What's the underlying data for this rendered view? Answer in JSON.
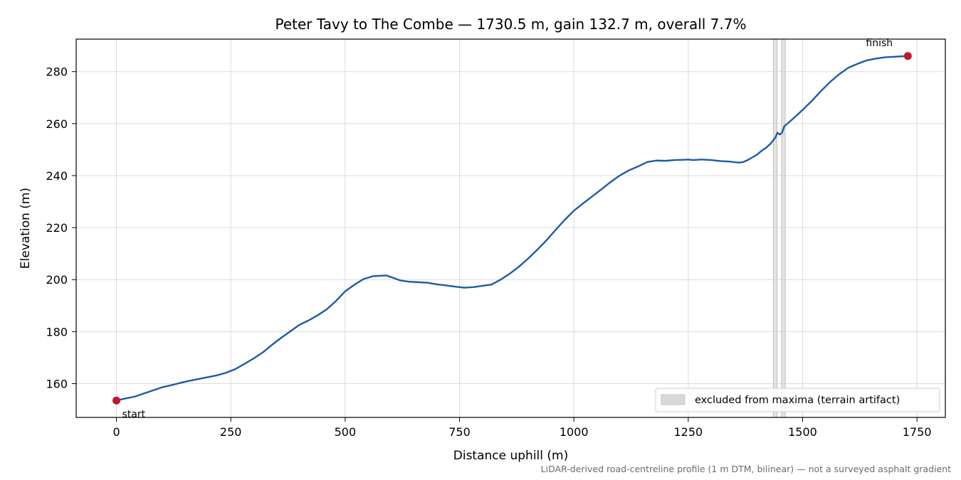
{
  "chart_data": {
    "type": "line",
    "title": "Peter Tavy to The Combe — 1730.5 m, gain 132.7 m, overall 7.7%",
    "xlabel": "Distance uphill (m)",
    "ylabel": "Elevation (m)",
    "xlim": [
      -88,
      1812
    ],
    "ylim": [
      147,
      292.5
    ],
    "x_ticks": [
      0,
      250,
      500,
      750,
      1000,
      1250,
      1500,
      1750
    ],
    "y_ticks": [
      160,
      180,
      200,
      220,
      240,
      260,
      280
    ],
    "grid": true,
    "colors": {
      "line": "#1f5aa6",
      "endpoint": "#c0182a",
      "band": "#d9d9d7"
    },
    "series": [
      {
        "x": [
          0,
          20,
          40,
          60,
          80,
          100,
          120,
          140,
          160,
          180,
          200,
          220,
          240,
          260,
          280,
          300,
          320,
          340,
          360,
          380,
          400,
          420,
          440,
          460,
          480,
          500,
          520,
          540,
          560,
          580,
          590,
          600,
          620,
          640,
          660,
          680,
          700,
          720,
          740,
          760,
          780,
          800,
          820,
          840,
          860,
          880,
          900,
          920,
          940,
          960,
          980,
          1000,
          1020,
          1040,
          1060,
          1080,
          1100,
          1120,
          1140,
          1160,
          1180,
          1200,
          1220,
          1240,
          1250,
          1260,
          1280,
          1300,
          1320,
          1340,
          1360,
          1370,
          1380,
          1390,
          1400,
          1410,
          1420,
          1430,
          1440,
          1445,
          1450,
          1455,
          1460,
          1480,
          1500,
          1520,
          1540,
          1560,
          1580,
          1600,
          1620,
          1640,
          1660,
          1680,
          1700,
          1730
        ],
        "y": [
          153.5,
          154.3,
          155.0,
          156.2,
          157.4,
          158.6,
          159.4,
          160.3,
          161.1,
          161.8,
          162.5,
          163.2,
          164.2,
          165.6,
          167.6,
          169.7,
          172.0,
          174.9,
          177.6,
          180.1,
          182.6,
          184.3,
          186.3,
          188.6,
          191.8,
          195.5,
          198.0,
          200.2,
          201.3,
          201.5,
          201.6,
          201.0,
          199.7,
          199.2,
          199.0,
          198.8,
          198.2,
          197.8,
          197.3,
          196.9,
          197.1,
          197.6,
          198.1,
          200.0,
          202.3,
          205.0,
          208.1,
          211.5,
          215.1,
          219.1,
          223.0,
          226.5,
          229.3,
          232.0,
          234.7,
          237.5,
          240.0,
          242.0,
          243.5,
          245.2,
          245.8,
          245.7,
          246.0,
          246.1,
          246.2,
          246.0,
          246.2,
          246.0,
          245.6,
          245.4,
          245.0,
          245.2,
          246.0,
          247.0,
          248.0,
          249.5,
          250.7,
          252.3,
          254.5,
          256.5,
          255.8,
          256.5,
          259.0,
          262.0,
          265.3,
          268.7,
          272.5,
          276.0,
          279.0,
          281.5,
          283.0,
          284.3,
          285.0,
          285.5,
          285.7,
          286.0
        ]
      }
    ],
    "start_point": {
      "x": 0,
      "y": 153.5,
      "label": "start"
    },
    "end_point": {
      "x": 1730,
      "y": 286.0,
      "label": "finish"
    },
    "excluded_bands": [
      [
        1436,
        1444
      ],
      [
        1454,
        1462
      ]
    ],
    "legend": {
      "label": "excluded from maxima (terrain artifact)",
      "position": "lower right"
    },
    "footnote": "LiDAR-derived road-centreline profile (1 m DTM, bilinear) — not a surveyed asphalt gradient"
  }
}
